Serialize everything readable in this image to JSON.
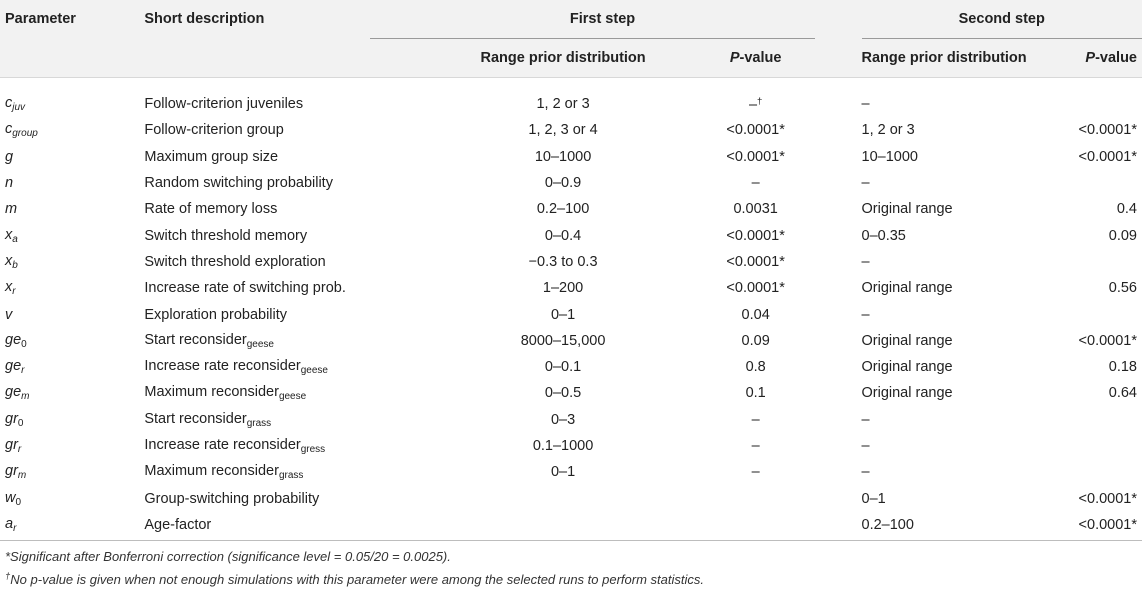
{
  "header": {
    "parameter": "Parameter",
    "short_description": "Short description",
    "first_step": "First step",
    "second_step": "Second step",
    "range_prior_1": "Range prior distribution",
    "pvalue_1_p": "P",
    "pvalue_1_rest": "-value",
    "range_prior_2": "Range prior distribution",
    "pvalue_2_p": "P",
    "pvalue_2_rest": "-value"
  },
  "rows": [
    {
      "sym": "c",
      "sub": "juv",
      "sub_italic": true,
      "desc": "Follow-criterion juveniles",
      "desc_sub": "",
      "range1": "1, 2 or 3",
      "p1": "–",
      "p1_sup": "†",
      "range2": "–",
      "p2": ""
    },
    {
      "sym": "c",
      "sub": "group",
      "sub_italic": true,
      "desc": "Follow-criterion group",
      "desc_sub": "",
      "range1": "1, 2, 3 or 4",
      "p1": "<0.0001*",
      "p1_sup": "",
      "range2": "1, 2 or 3",
      "p2": "<0.0001*"
    },
    {
      "sym": "g",
      "sub": "",
      "sub_italic": false,
      "desc": "Maximum group size",
      "desc_sub": "",
      "range1": "10–1000",
      "p1": "<0.0001*",
      "p1_sup": "",
      "range2": "10–1000",
      "p2": "<0.0001*"
    },
    {
      "sym": "n",
      "sub": "",
      "sub_italic": false,
      "desc": "Random switching probability",
      "desc_sub": "",
      "range1": "0–0.9",
      "p1": "–",
      "p1_sup": "",
      "range2": "–",
      "p2": ""
    },
    {
      "sym": "m",
      "sub": "",
      "sub_italic": false,
      "desc": "Rate of memory loss",
      "desc_sub": "",
      "range1": "0.2–100",
      "p1": "0.0031",
      "p1_sup": "",
      "range2": "Original range",
      "p2": "0.4"
    },
    {
      "sym": "x",
      "sub": "a",
      "sub_italic": true,
      "desc": "Switch threshold memory",
      "desc_sub": "",
      "range1": "0–0.4",
      "p1": "<0.0001*",
      "p1_sup": "",
      "range2": "0–0.35",
      "p2": "0.09"
    },
    {
      "sym": "x",
      "sub": "b",
      "sub_italic": true,
      "desc": "Switch threshold exploration",
      "desc_sub": "",
      "range1": "−0.3 to 0.3",
      "p1": "<0.0001*",
      "p1_sup": "",
      "range2": "–",
      "p2": ""
    },
    {
      "sym": "x",
      "sub": "r",
      "sub_italic": true,
      "desc": "Increase rate of switching prob.",
      "desc_sub": "",
      "range1": "1–200",
      "p1": "<0.0001*",
      "p1_sup": "",
      "range2": "Original range",
      "p2": "0.56"
    },
    {
      "sym": "v",
      "sub": "",
      "sub_italic": false,
      "desc": "Exploration probability",
      "desc_sub": "",
      "range1": "0–1",
      "p1": "0.04",
      "p1_sup": "",
      "range2": "–",
      "p2": ""
    },
    {
      "sym": "ge",
      "sub": "0",
      "sub_italic": false,
      "desc": "Start reconsider",
      "desc_sub": "geese",
      "range1": "8000–15,000",
      "p1": "0.09",
      "p1_sup": "",
      "range2": "Original range",
      "p2": "<0.0001*"
    },
    {
      "sym": "ge",
      "sub": "r",
      "sub_italic": true,
      "desc": "Increase rate reconsider",
      "desc_sub": "geese",
      "range1": "0–0.1",
      "p1": "0.8",
      "p1_sup": "",
      "range2": "Original range",
      "p2": "0.18"
    },
    {
      "sym": "ge",
      "sub": "m",
      "sub_italic": true,
      "desc": "Maximum reconsider",
      "desc_sub": "geese",
      "range1": "0–0.5",
      "p1": "0.1",
      "p1_sup": "",
      "range2": "Original range",
      "p2": "0.64"
    },
    {
      "sym": "gr",
      "sub": "0",
      "sub_italic": false,
      "desc": "Start reconsider",
      "desc_sub": "grass",
      "range1": "0–3",
      "p1": "–",
      "p1_sup": "",
      "range2": "–",
      "p2": ""
    },
    {
      "sym": "gr",
      "sub": "r",
      "sub_italic": true,
      "desc": "Increase rate reconsider",
      "desc_sub": "gress",
      "range1": "0.1–1000",
      "p1": "–",
      "p1_sup": "",
      "range2": "–",
      "p2": ""
    },
    {
      "sym": "gr",
      "sub": "m",
      "sub_italic": true,
      "desc": "Maximum reconsider",
      "desc_sub": "grass",
      "range1": "0–1",
      "p1": "–",
      "p1_sup": "",
      "range2": "–",
      "p2": ""
    },
    {
      "sym": "w",
      "sub": "0",
      "sub_italic": false,
      "desc": "Group-switching probability",
      "desc_sub": "",
      "range1": "",
      "p1": "",
      "p1_sup": "",
      "range2": "0–1",
      "p2": "<0.0001*"
    },
    {
      "sym": "a",
      "sub": "r",
      "sub_italic": true,
      "desc": "Age-factor",
      "desc_sub": "",
      "range1": "",
      "p1": "",
      "p1_sup": "",
      "range2": "0.2–100",
      "p2": "<0.0001*"
    }
  ],
  "footnotes": {
    "note1": "*Significant after Bonferroni correction (significance level = 0.05/20 = 0.0025).",
    "note2_mark": "†",
    "note2": "No p-value is given when not enough simulations with this parameter were among the selected runs to perform statistics."
  }
}
